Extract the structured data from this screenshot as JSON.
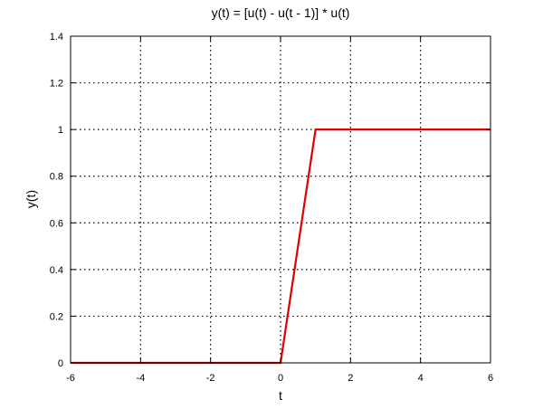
{
  "chart_data": {
    "type": "line",
    "title": "y(t) = [u(t) - u(t - 1)] * u(t)",
    "xlabel": "t",
    "ylabel": "y(t)",
    "xlim": [
      -6,
      6
    ],
    "ylim": [
      0,
      1.4
    ],
    "grid": true,
    "xticks": [
      "-6",
      "-4",
      "-2",
      "0",
      "2",
      "4",
      "6"
    ],
    "yticks": [
      "0",
      "0.2",
      "0.4",
      "0.6",
      "0.8",
      "1",
      "1.2",
      "1.4"
    ],
    "series": [
      {
        "color": "#e00000",
        "x": [
          -6,
          0,
          1,
          6
        ],
        "y": [
          0,
          0,
          1,
          1
        ]
      }
    ]
  }
}
